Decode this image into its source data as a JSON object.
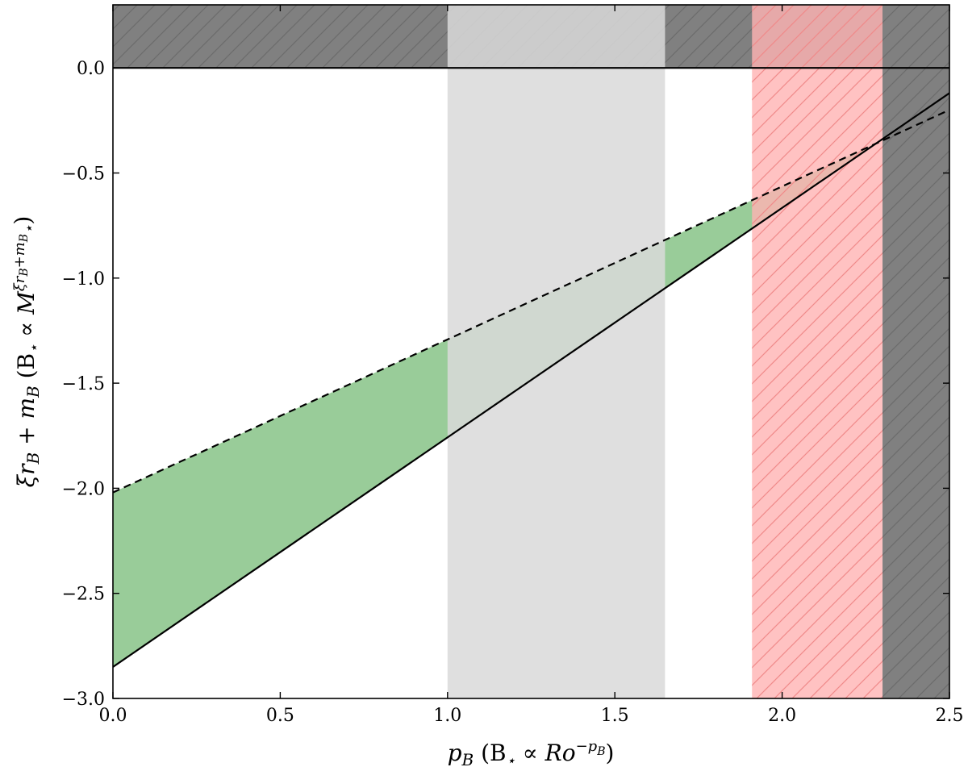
{
  "chart_data": {
    "type": "line",
    "title": "",
    "xlabel": "p_B (B⋆ ∝ Ro^−p_B)",
    "ylabel": "ξr_B + m_B (B⋆ ∝ M⋆^(ξr_B+m_B))",
    "xlim": [
      0.0,
      2.5
    ],
    "ylim": [
      -3.0,
      0.3
    ],
    "x_ticks": [
      0.0,
      0.5,
      1.0,
      1.5,
      2.0,
      2.5
    ],
    "x_tick_labels": [
      "0.0",
      "0.5",
      "1.0",
      "1.5",
      "2.0",
      "2.5"
    ],
    "y_ticks": [
      0.0,
      -0.5,
      -1.0,
      -1.5,
      -2.0,
      -2.5,
      -3.0
    ],
    "y_tick_labels": [
      "0.0",
      "−0.5",
      "−1.0",
      "−1.5",
      "−2.0",
      "−2.5",
      "−3.0"
    ],
    "grid": false,
    "series": [
      {
        "style": "solid",
        "color": "#000000",
        "x": [
          0.0,
          2.5
        ],
        "y": [
          -2.85,
          -0.12
        ]
      },
      {
        "style": "dashed",
        "color": "#000000",
        "x": [
          0.0,
          2.5
        ],
        "y": [
          -2.02,
          -0.2
        ]
      },
      {
        "style": "solid-horizontal",
        "color": "#000000",
        "x": [
          0.0,
          2.5
        ],
        "y": [
          0.0,
          0.0
        ]
      }
    ],
    "filled_regions": [
      {
        "kind": "between-lines",
        "color": "#7fbf7f",
        "x_range": [
          0.0,
          2.3
        ]
      },
      {
        "kind": "horizontal-band",
        "color": "#808080",
        "hatched": true,
        "y_range": [
          0.0,
          0.3
        ]
      },
      {
        "kind": "vertical-band",
        "color": "#d9d9d9",
        "x_range": [
          1.0,
          1.65
        ]
      },
      {
        "kind": "vertical-band",
        "color": "#ffb3b3",
        "hatched": true,
        "x_range": [
          1.91,
          2.3
        ]
      },
      {
        "kind": "vertical-band",
        "color": "#808080",
        "hatched": true,
        "x_range": [
          2.3,
          2.5
        ]
      }
    ]
  }
}
